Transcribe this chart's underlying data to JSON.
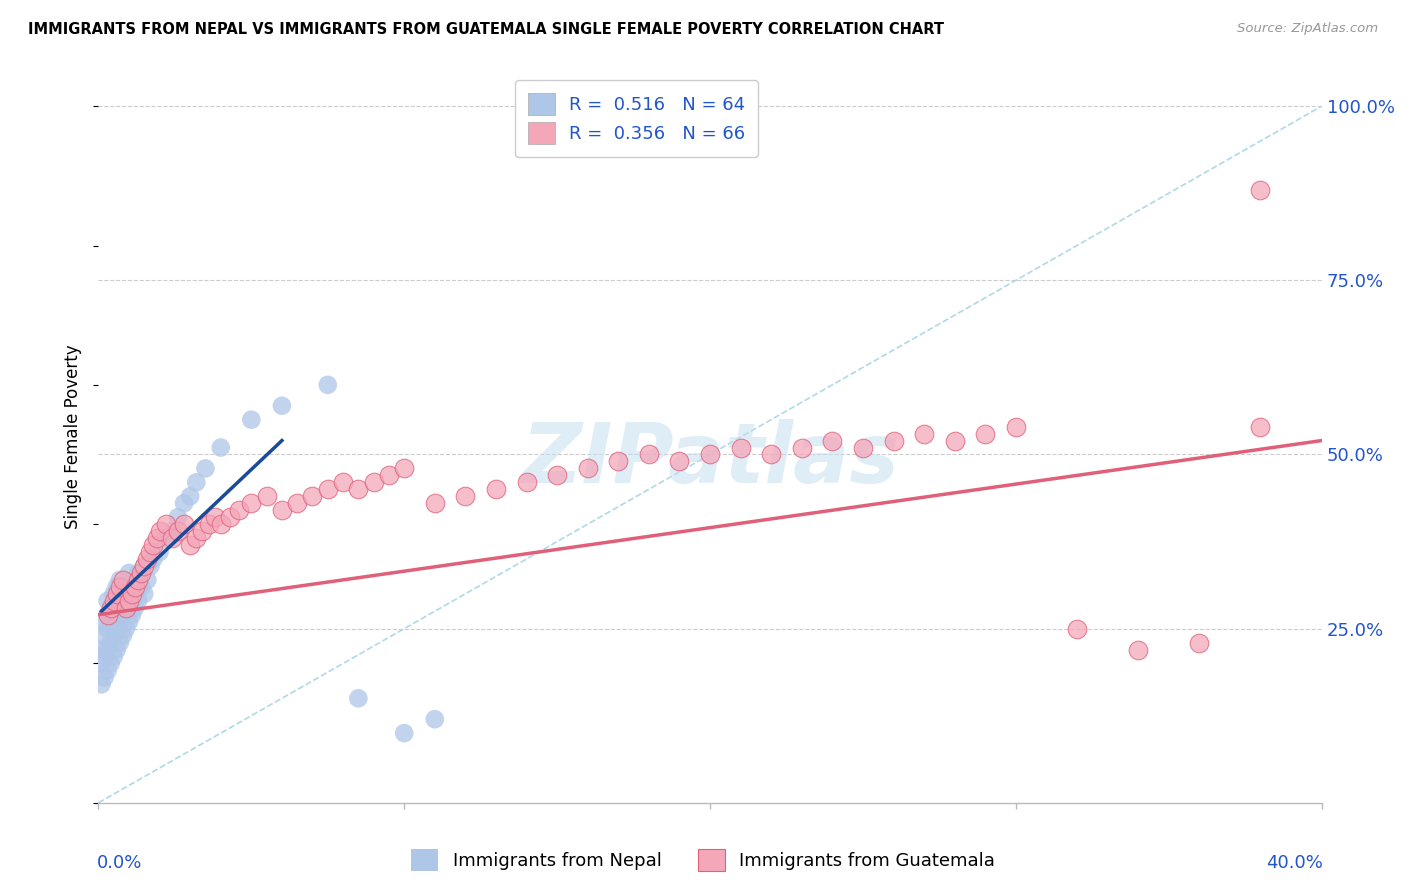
{
  "title": "IMMIGRANTS FROM NEPAL VS IMMIGRANTS FROM GUATEMALA SINGLE FEMALE POVERTY CORRELATION CHART",
  "source": "Source: ZipAtlas.com",
  "ylabel": "Single Female Poverty",
  "right_yticks": [
    "100.0%",
    "75.0%",
    "50.0%",
    "25.0%"
  ],
  "right_ytick_vals": [
    1.0,
    0.75,
    0.5,
    0.25
  ],
  "xlim": [
    0.0,
    0.4
  ],
  "ylim": [
    0.0,
    1.05
  ],
  "nepal_R": 0.516,
  "nepal_N": 64,
  "guatemala_R": 0.356,
  "guatemala_N": 66,
  "nepal_color": "#aec6e8",
  "guatemala_color": "#f4a7b9",
  "nepal_line_color": "#1a4a9a",
  "guatemala_line_color": "#e0607a",
  "diagonal_color": "#b0d8e8",
  "watermark": "ZIPatlas",
  "nepal_x": [
    0.001,
    0.001,
    0.001,
    0.002,
    0.002,
    0.002,
    0.002,
    0.003,
    0.003,
    0.003,
    0.003,
    0.003,
    0.004,
    0.004,
    0.004,
    0.004,
    0.005,
    0.005,
    0.005,
    0.005,
    0.006,
    0.006,
    0.006,
    0.006,
    0.007,
    0.007,
    0.007,
    0.007,
    0.008,
    0.008,
    0.008,
    0.009,
    0.009,
    0.009,
    0.01,
    0.01,
    0.01,
    0.011,
    0.011,
    0.012,
    0.012,
    0.013,
    0.013,
    0.014,
    0.015,
    0.015,
    0.016,
    0.017,
    0.018,
    0.02,
    0.022,
    0.024,
    0.026,
    0.028,
    0.03,
    0.032,
    0.035,
    0.04,
    0.05,
    0.06,
    0.075,
    0.085,
    0.1,
    0.11
  ],
  "nepal_y": [
    0.17,
    0.2,
    0.22,
    0.18,
    0.21,
    0.24,
    0.26,
    0.19,
    0.22,
    0.25,
    0.27,
    0.29,
    0.2,
    0.23,
    0.26,
    0.28,
    0.21,
    0.24,
    0.27,
    0.3,
    0.22,
    0.25,
    0.28,
    0.31,
    0.23,
    0.26,
    0.29,
    0.32,
    0.24,
    0.27,
    0.3,
    0.25,
    0.28,
    0.31,
    0.26,
    0.29,
    0.33,
    0.27,
    0.3,
    0.28,
    0.32,
    0.29,
    0.33,
    0.31,
    0.3,
    0.34,
    0.32,
    0.34,
    0.35,
    0.36,
    0.38,
    0.39,
    0.41,
    0.43,
    0.44,
    0.46,
    0.48,
    0.51,
    0.55,
    0.57,
    0.6,
    0.15,
    0.1,
    0.12
  ],
  "guatemala_x": [
    0.003,
    0.004,
    0.005,
    0.006,
    0.007,
    0.008,
    0.009,
    0.01,
    0.011,
    0.012,
    0.013,
    0.014,
    0.015,
    0.016,
    0.017,
    0.018,
    0.019,
    0.02,
    0.022,
    0.024,
    0.026,
    0.028,
    0.03,
    0.032,
    0.034,
    0.036,
    0.038,
    0.04,
    0.043,
    0.046,
    0.05,
    0.055,
    0.06,
    0.065,
    0.07,
    0.075,
    0.08,
    0.085,
    0.09,
    0.095,
    0.1,
    0.11,
    0.12,
    0.13,
    0.14,
    0.15,
    0.16,
    0.17,
    0.18,
    0.19,
    0.2,
    0.21,
    0.22,
    0.23,
    0.24,
    0.25,
    0.26,
    0.27,
    0.28,
    0.29,
    0.3,
    0.32,
    0.34,
    0.36,
    0.38,
    0.38
  ],
  "guatemala_y": [
    0.27,
    0.28,
    0.29,
    0.3,
    0.31,
    0.32,
    0.28,
    0.29,
    0.3,
    0.31,
    0.32,
    0.33,
    0.34,
    0.35,
    0.36,
    0.37,
    0.38,
    0.39,
    0.4,
    0.38,
    0.39,
    0.4,
    0.37,
    0.38,
    0.39,
    0.4,
    0.41,
    0.4,
    0.41,
    0.42,
    0.43,
    0.44,
    0.42,
    0.43,
    0.44,
    0.45,
    0.46,
    0.45,
    0.46,
    0.47,
    0.48,
    0.43,
    0.44,
    0.45,
    0.46,
    0.47,
    0.48,
    0.49,
    0.5,
    0.49,
    0.5,
    0.51,
    0.5,
    0.51,
    0.52,
    0.51,
    0.52,
    0.53,
    0.52,
    0.53,
    0.54,
    0.25,
    0.22,
    0.23,
    0.54,
    0.88
  ],
  "nepal_line_x": [
    0.001,
    0.06
  ],
  "nepal_line_y": [
    0.275,
    0.52
  ],
  "guat_line_x": [
    0.0,
    0.4
  ],
  "guat_line_y": [
    0.27,
    0.52
  ]
}
